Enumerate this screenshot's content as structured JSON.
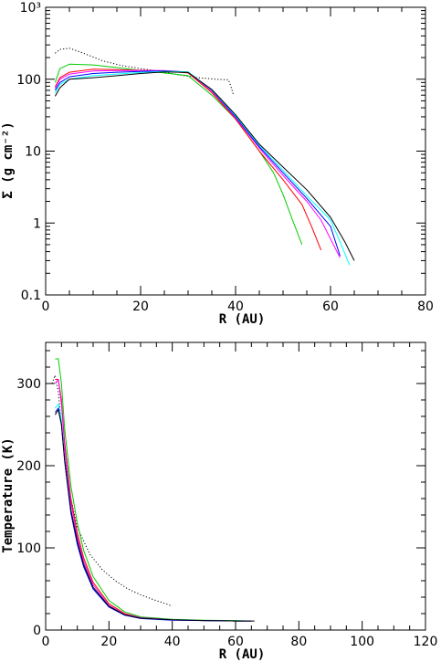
{
  "chart_data": [
    {
      "type": "line",
      "xlabel": "R (AU)",
      "ylabel": "Σ (g cm⁻²)",
      "xlim": [
        0,
        80
      ],
      "ylim": [
        0.1,
        1000
      ],
      "yscale": "log",
      "xticks": [
        0,
        20,
        40,
        60,
        80
      ],
      "xtick_labels": [
        "0",
        "20",
        "40",
        "60",
        "80"
      ],
      "yticks": [
        0.1,
        1,
        10,
        100,
        1000
      ],
      "ytick_labels": [
        "0.1",
        "1",
        "10",
        "100",
        "10³"
      ],
      "grid": false,
      "series": [
        {
          "color": "#000000",
          "style": "dotted",
          "x": [
            2,
            3,
            5,
            8,
            12,
            16,
            20,
            24,
            28,
            32,
            36,
            38.5,
            39,
            39.5
          ],
          "y": [
            230,
            260,
            270,
            230,
            180,
            155,
            140,
            130,
            115,
            105,
            100,
            98,
            80,
            62
          ]
        },
        {
          "color": "#00cc00",
          "style": "solid",
          "x": [
            2,
            3,
            5,
            10,
            15,
            20,
            25,
            30,
            35,
            40,
            45,
            48,
            50,
            52,
            54
          ],
          "y": [
            90,
            140,
            162,
            158,
            145,
            132,
            122,
            112,
            60,
            28,
            10,
            5,
            2.5,
            1.1,
            0.5
          ]
        },
        {
          "color": "#ff0000",
          "style": "solid",
          "x": [
            2,
            3,
            5,
            10,
            15,
            20,
            25,
            30,
            35,
            40,
            45,
            50,
            54,
            56,
            58
          ],
          "y": [
            78,
            105,
            125,
            138,
            136,
            133,
            130,
            122,
            65,
            28,
            10,
            4,
            1.8,
            0.9,
            0.42
          ]
        },
        {
          "color": "#ff00ff",
          "style": "solid",
          "x": [
            2,
            3,
            5,
            10,
            15,
            20,
            25,
            30,
            35,
            40,
            45,
            50,
            55,
            58,
            60,
            62
          ],
          "y": [
            75,
            100,
            118,
            130,
            132,
            132,
            132,
            125,
            68,
            29,
            11,
            4.6,
            2,
            1.1,
            0.6,
            0.33
          ]
        },
        {
          "color": "#0000ff",
          "style": "solid",
          "x": [
            2,
            3,
            5,
            10,
            15,
            20,
            25,
            30,
            35,
            40,
            45,
            50,
            55,
            60,
            62
          ],
          "y": [
            70,
            90,
            108,
            120,
            125,
            128,
            130,
            126,
            70,
            30,
            11.5,
            5,
            2.2,
            0.9,
            0.35
          ]
        },
        {
          "color": "#00ffff",
          "style": "solid",
          "x": [
            2,
            3,
            5,
            10,
            15,
            20,
            25,
            30,
            35,
            40,
            45,
            50,
            55,
            60,
            62,
            64
          ],
          "y": [
            65,
            85,
            100,
            112,
            118,
            124,
            128,
            126,
            71,
            31,
            12,
            5.4,
            2.4,
            1.1,
            0.55,
            0.26
          ]
        },
        {
          "color": "#000000",
          "style": "solid",
          "x": [
            2,
            3,
            5,
            10,
            15,
            20,
            25,
            30,
            35,
            40,
            45,
            50,
            55,
            60,
            63,
            65
          ],
          "y": [
            58,
            76,
            100,
            105,
            112,
            120,
            126,
            124,
            72,
            32,
            12.5,
            6,
            2.9,
            1.2,
            0.55,
            0.3
          ]
        }
      ]
    },
    {
      "type": "line",
      "xlabel": "R (AU)",
      "ylabel": "Temperature (K)",
      "xlim": [
        0,
        120
      ],
      "ylim": [
        0,
        350
      ],
      "yscale": "linear",
      "xticks": [
        0,
        20,
        40,
        60,
        80,
        100,
        120
      ],
      "xtick_labels": [
        "0",
        "20",
        "40",
        "60",
        "80",
        "100",
        "120"
      ],
      "yticks": [
        0,
        100,
        200,
        300
      ],
      "ytick_labels": [
        "0",
        "100",
        "200",
        "300"
      ],
      "grid": false,
      "series": [
        {
          "color": "#000000",
          "style": "dotted",
          "x": [
            2,
            3,
            4,
            6,
            8,
            10,
            14,
            18,
            22,
            26,
            30,
            34,
            38,
            40
          ],
          "y": [
            300,
            310,
            290,
            210,
            160,
            125,
            92,
            73,
            60,
            50,
            43,
            37,
            32,
            29
          ]
        },
        {
          "color": "#00cc00",
          "style": "solid",
          "x": [
            3,
            4,
            5,
            6,
            8,
            10,
            12,
            15,
            20,
            25,
            30,
            40,
            50,
            60,
            65
          ],
          "y": [
            330,
            330,
            300,
            245,
            175,
            130,
            97,
            65,
            36,
            22,
            16,
            13,
            12,
            11.5,
            11
          ]
        },
        {
          "color": "#ff0000",
          "style": "solid",
          "x": [
            3,
            4,
            5,
            6,
            8,
            10,
            12,
            15,
            20,
            25,
            30,
            40,
            50,
            60,
            65
          ],
          "y": [
            305,
            305,
            280,
            228,
            160,
            118,
            88,
            58,
            32,
            20,
            15,
            12.5,
            11.5,
            11,
            11
          ]
        },
        {
          "color": "#ff00ff",
          "style": "solid",
          "x": [
            3,
            4,
            5,
            6,
            8,
            10,
            12,
            15,
            20,
            25,
            30,
            40,
            50,
            60,
            65
          ],
          "y": [
            300,
            305,
            275,
            222,
            155,
            113,
            84,
            55,
            30,
            19,
            15,
            12.5,
            11.5,
            11,
            11
          ]
        },
        {
          "color": "#00ffff",
          "style": "solid",
          "x": [
            3,
            4,
            5,
            6,
            8,
            10,
            12,
            15,
            20,
            25,
            30,
            40,
            50,
            60,
            65
          ],
          "y": [
            270,
            275,
            255,
            208,
            145,
            106,
            79,
            52,
            29,
            18.5,
            14.5,
            12.5,
            11.5,
            11,
            11
          ]
        },
        {
          "color": "#0000ff",
          "style": "solid",
          "x": [
            3,
            4,
            5,
            6,
            8,
            10,
            12,
            15,
            20,
            25,
            30,
            40,
            50,
            60,
            65
          ],
          "y": [
            265,
            270,
            250,
            205,
            142,
            104,
            77,
            50,
            28,
            18,
            14,
            12,
            11.5,
            11,
            11
          ]
        },
        {
          "color": "#000000",
          "style": "solid",
          "x": [
            3,
            4,
            5,
            6,
            8,
            10,
            12,
            15,
            20,
            25,
            30,
            40,
            50,
            60,
            66
          ],
          "y": [
            262,
            268,
            250,
            207,
            146,
            108,
            80,
            52,
            29,
            18.5,
            14.5,
            12.5,
            11.5,
            11,
            11
          ]
        }
      ]
    }
  ]
}
